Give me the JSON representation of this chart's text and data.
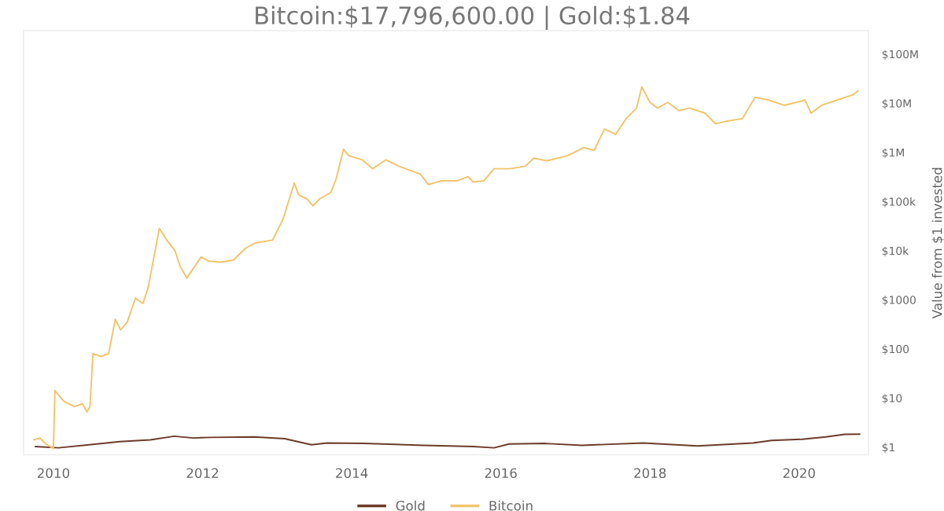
{
  "chart_data": {
    "type": "line",
    "title": "Bitcoin:$17,796,600.00 | Gold:$1.84",
    "ylabel": "Value from $1 invested",
    "log": "y",
    "legend": "bottom",
    "grid": false,
    "marker": "none",
    "line_style": "solid",
    "xlim": [
      2009.6,
      2020.93
    ],
    "xticks": [
      2010,
      2012,
      2014,
      2016,
      2018,
      2020
    ],
    "ylim": [
      0.7,
      300000000
    ],
    "yticks": [
      {
        "value": 1,
        "label": "$1"
      },
      {
        "value": 10,
        "label": "$10"
      },
      {
        "value": 100,
        "label": "$100"
      },
      {
        "value": 1000,
        "label": "$1000"
      },
      {
        "value": 10000,
        "label": "$10k"
      },
      {
        "value": 100000,
        "label": "$100k"
      },
      {
        "value": 1000000,
        "label": "$1M"
      },
      {
        "value": 10000000,
        "label": "$10M"
      },
      {
        "value": 100000000,
        "label": "$100M"
      }
    ],
    "series": [
      {
        "name": "Gold",
        "color": "#6b3b2a",
        "x": [
          2009.76,
          2010.07,
          2010.48,
          2010.89,
          2011.3,
          2011.62,
          2011.87,
          2012.11,
          2012.69,
          2013.1,
          2013.46,
          2013.67,
          2014.16,
          2014.97,
          2015.63,
          2015.91,
          2016.11,
          2016.6,
          2017.09,
          2017.91,
          2018.64,
          2019.38,
          2019.63,
          2020.04,
          2020.36,
          2020.61,
          2020.81
        ],
        "values": [
          1.03,
          0.97,
          1.12,
          1.3,
          1.41,
          1.67,
          1.54,
          1.58,
          1.62,
          1.49,
          1.12,
          1.22,
          1.19,
          1.09,
          1.03,
          0.97,
          1.16,
          1.19,
          1.09,
          1.22,
          1.06,
          1.22,
          1.37,
          1.45,
          1.62,
          1.82,
          1.84
        ]
      },
      {
        "name": "Bitcoin",
        "color": "#f2c46d",
        "x": [
          2009.74,
          2009.82,
          2009.89,
          2010.0,
          2010.02,
          2010.14,
          2010.28,
          2010.39,
          2010.45,
          2010.49,
          2010.53,
          2010.64,
          2010.74,
          2010.83,
          2010.9,
          2010.99,
          2011.1,
          2011.2,
          2011.27,
          2011.42,
          2011.52,
          2011.63,
          2011.7,
          2011.79,
          2011.87,
          2011.98,
          2012.09,
          2012.23,
          2012.41,
          2012.58,
          2012.72,
          2012.94,
          2013.08,
          2013.23,
          2013.29,
          2013.4,
          2013.48,
          2013.57,
          2013.72,
          2013.79,
          2013.89,
          2013.96,
          2014.14,
          2014.28,
          2014.46,
          2014.63,
          2014.78,
          2014.92,
          2015.03,
          2015.2,
          2015.41,
          2015.56,
          2015.63,
          2015.77,
          2015.91,
          2016.12,
          2016.33,
          2016.44,
          2016.62,
          2016.9,
          2017.11,
          2017.25,
          2017.39,
          2017.54,
          2017.68,
          2017.82,
          2017.89,
          2018.0,
          2018.1,
          2018.24,
          2018.39,
          2018.53,
          2018.74,
          2018.88,
          2019.02,
          2019.24,
          2019.41,
          2019.59,
          2019.8,
          2020.08,
          2020.16,
          2020.3,
          2020.51,
          2020.72,
          2020.79
        ],
        "values": [
          1.42,
          1.53,
          1.19,
          0.93,
          14.2,
          8.6,
          6.7,
          7.6,
          5.2,
          6.7,
          80,
          70,
          80,
          400,
          244,
          353,
          1080,
          843,
          1770,
          28300,
          16400,
          10000,
          4750,
          2770,
          4200,
          7430,
          6080,
          5820,
          6400,
          11300,
          14500,
          16400,
          44200,
          238000,
          135000,
          113000,
          81800,
          113000,
          153000,
          283000,
          1160000,
          861000,
          705000,
          465000,
          705000,
          524000,
          432000,
          361000,
          221000,
          263000,
          263000,
          321000,
          249000,
          263000,
          465000,
          465000,
          524000,
          760000,
          675000,
          861000,
          1250000,
          1100000,
          2980000,
          2320000,
          4870000,
          8000000,
          21500000,
          10400000,
          8000000,
          10400000,
          7050000,
          8000000,
          6260000,
          3810000,
          4310000,
          4870000,
          13200000,
          11600000,
          9080000,
          11600000,
          6260000,
          9080000,
          11600000,
          14800000,
          17796600
        ]
      }
    ]
  }
}
